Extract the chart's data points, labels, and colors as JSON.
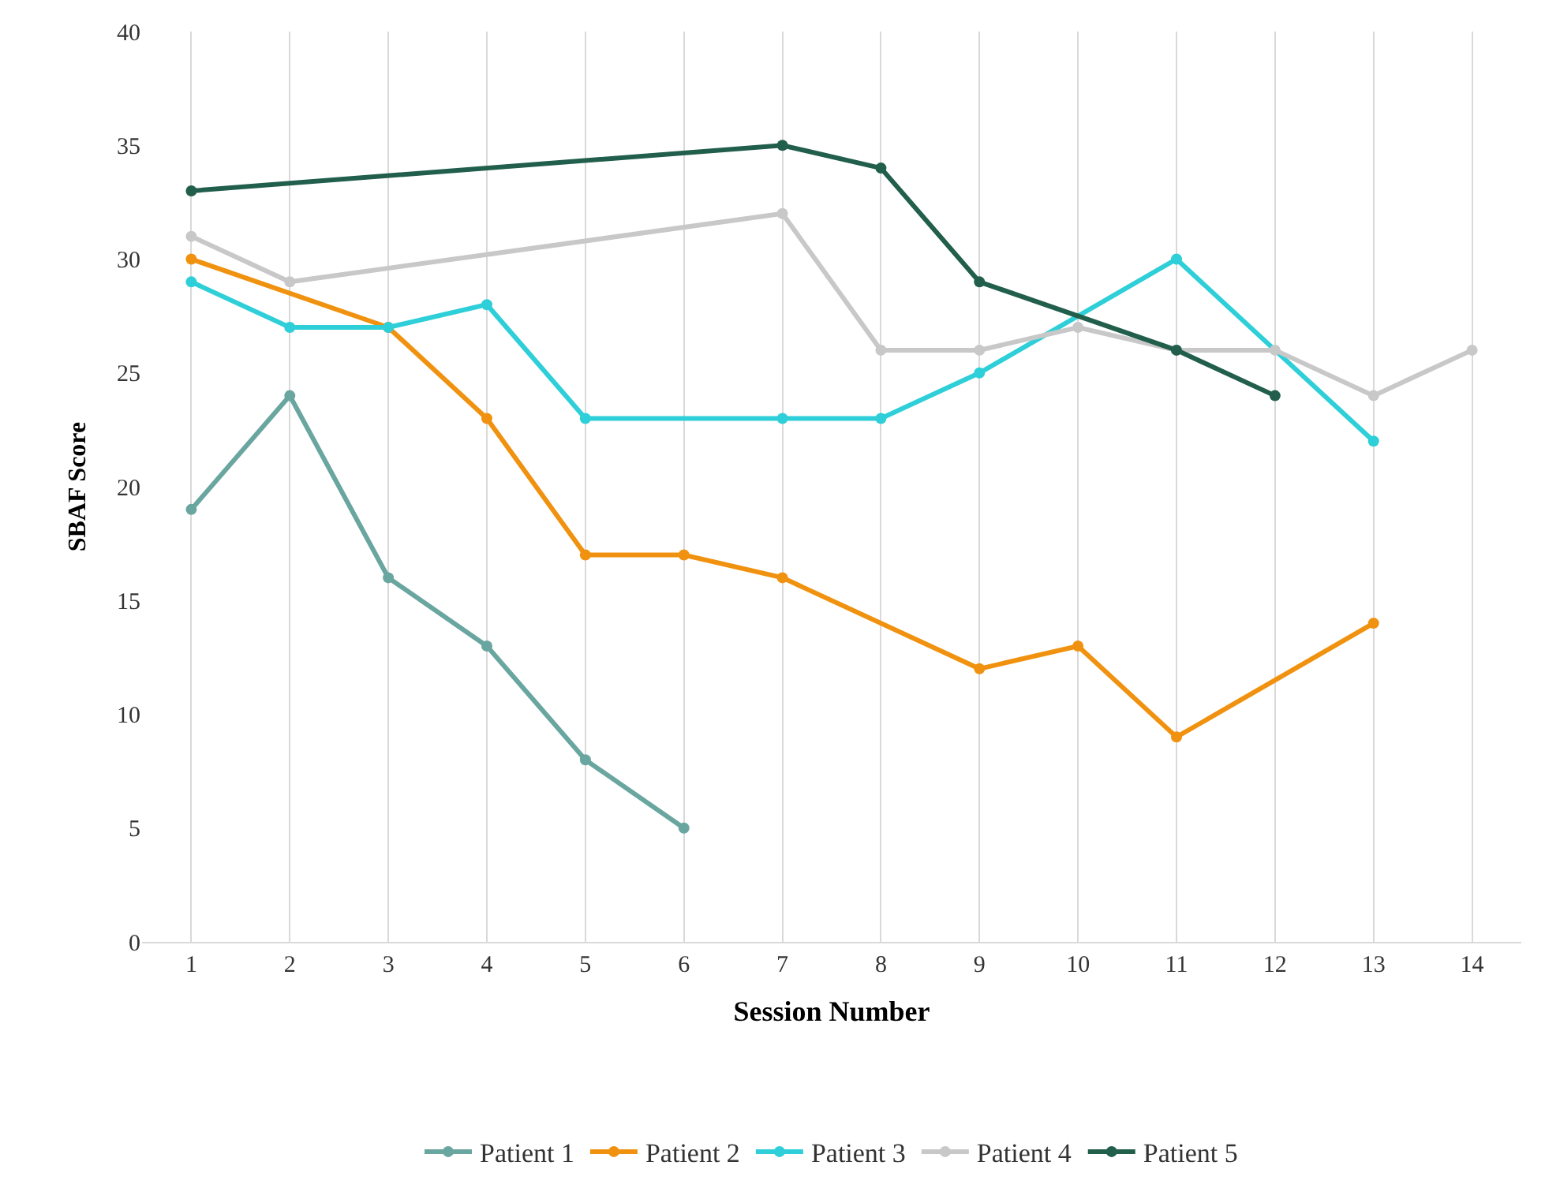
{
  "chart_data": {
    "type": "line",
    "xlabel": "Session Number",
    "ylabel": "SBAF Score",
    "xlim": [
      0.5,
      14.5
    ],
    "xticks": [
      1,
      2,
      3,
      4,
      5,
      6,
      7,
      8,
      9,
      10,
      11,
      12,
      13,
      14
    ],
    "ylim": [
      0,
      40
    ],
    "yticks": [
      0,
      5,
      10,
      15,
      20,
      25,
      30,
      35,
      40
    ],
    "grid": "x",
    "legend": "bottom",
    "marker": "circle",
    "line_style": "solid",
    "series": [
      {
        "name": "Patient 1",
        "color": "#6aa6a0",
        "x": [
          1,
          2,
          3,
          4,
          5,
          6
        ],
        "values": [
          19,
          24,
          16,
          13,
          8,
          5
        ]
      },
      {
        "name": "Patient 2",
        "color": "#f0920f",
        "x": [
          1,
          3,
          4,
          5,
          6,
          7,
          9,
          10,
          11,
          13
        ],
        "values": [
          30,
          27,
          23,
          17,
          17,
          16,
          12,
          13,
          9,
          14
        ]
      },
      {
        "name": "Patient 3",
        "color": "#2ecfd8",
        "x": [
          1,
          2,
          3,
          4,
          5,
          7,
          8,
          9,
          11,
          13
        ],
        "values": [
          29,
          27,
          27,
          28,
          23,
          23,
          23,
          25,
          30,
          22
        ]
      },
      {
        "name": "Patient 4",
        "color": "#c8c8c8",
        "x": [
          1,
          2,
          7,
          8,
          9,
          10,
          11,
          12,
          13,
          14
        ],
        "values": [
          31,
          29,
          32,
          26,
          26,
          27,
          26,
          26,
          24,
          26
        ]
      },
      {
        "name": "Patient 5",
        "color": "#215e4b",
        "x": [
          1,
          7,
          8,
          9,
          11,
          12
        ],
        "values": [
          33,
          35,
          34,
          29,
          26,
          24
        ]
      }
    ]
  }
}
